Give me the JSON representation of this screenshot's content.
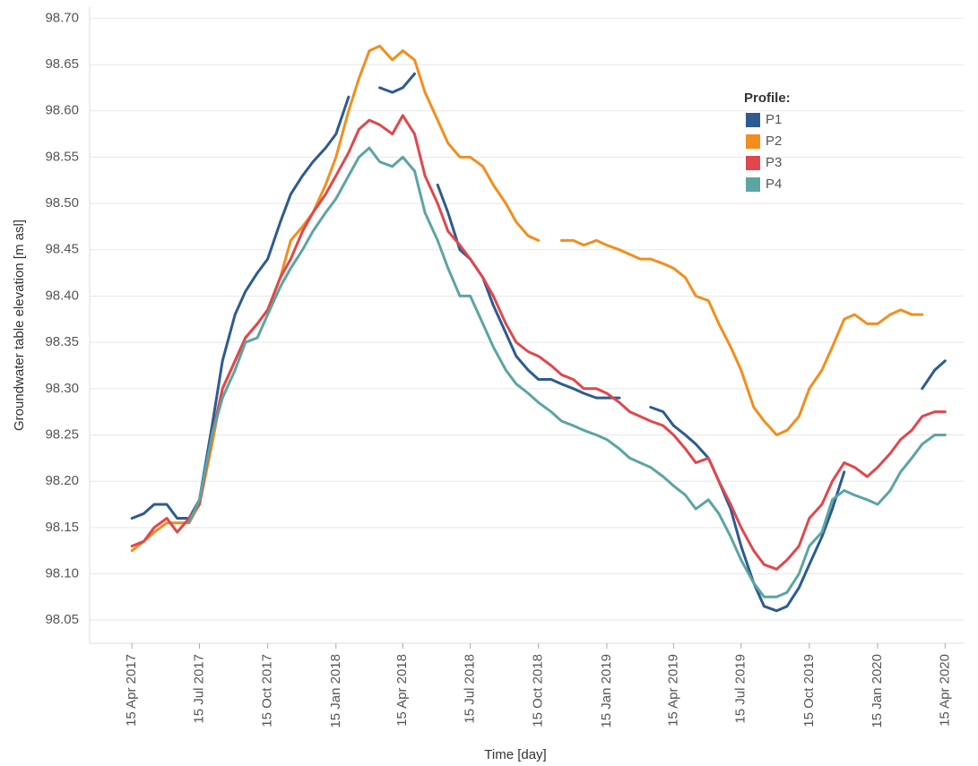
{
  "chart_data": {
    "type": "line",
    "x_label": "Time [day]",
    "y_label": "Groundwater table elevation [m asl]",
    "grid": true,
    "legend": {
      "title": "Profile:",
      "position": "upper right"
    },
    "xlim": [
      "2017-02-17",
      "2020-05-10"
    ],
    "ylim": [
      98.025,
      98.712
    ],
    "yticks": [
      98.05,
      {
        "value": 98.1,
        "label": "98.10"
      },
      98.15,
      {
        "value": 98.2,
        "label": "98.20"
      },
      98.25,
      {
        "value": 98.3,
        "label": "98.30"
      },
      98.35,
      {
        "value": 98.4,
        "label": "98.40"
      },
      98.45,
      {
        "value": 98.5,
        "label": "98.50"
      },
      98.55,
      {
        "value": 98.6,
        "label": "98.60"
      },
      98.65,
      {
        "value": 98.7,
        "label": "98.70"
      }
    ],
    "xticks": [
      {
        "value": "2017-04-15",
        "label": "15 Apr 2017"
      },
      {
        "value": "2017-07-15",
        "label": "15 Jul 2017"
      },
      {
        "value": "2017-10-15",
        "label": "15 Oct 2017"
      },
      {
        "value": "2018-01-15",
        "label": "15 Jan 2018"
      },
      {
        "value": "2018-04-15",
        "label": "15 Apr 2018"
      },
      {
        "value": "2018-07-15",
        "label": "15 Jul 2018"
      },
      {
        "value": "2018-10-15",
        "label": "15 Oct 2018"
      },
      {
        "value": "2019-01-15",
        "label": "15 Jan 2019"
      },
      {
        "value": "2019-04-15",
        "label": "15 Apr 2019"
      },
      {
        "value": "2019-07-15",
        "label": "15 Jul 2019"
      },
      {
        "value": "2019-10-15",
        "label": "15 Oct 2019"
      },
      {
        "value": "2020-01-15",
        "label": "15 Jan 2020"
      },
      {
        "value": "2020-04-15",
        "label": "15 Apr 2020"
      }
    ],
    "x": [
      "2017-04-15",
      "2017-05-01",
      "2017-05-15",
      "2017-06-01",
      "2017-06-15",
      "2017-07-01",
      "2017-07-15",
      "2017-08-01",
      "2017-08-15",
      "2017-09-01",
      "2017-09-15",
      "2017-10-01",
      "2017-10-15",
      "2017-11-01",
      "2017-11-15",
      "2017-12-01",
      "2017-12-15",
      "2018-01-01",
      "2018-01-15",
      "2018-02-01",
      "2018-02-15",
      "2018-03-01",
      "2018-03-15",
      "2018-04-01",
      "2018-04-15",
      "2018-05-01",
      "2018-05-15",
      "2018-06-01",
      "2018-06-15",
      "2018-07-01",
      "2018-07-15",
      "2018-08-01",
      "2018-08-15",
      "2018-09-01",
      "2018-09-15",
      "2018-10-01",
      "2018-10-15",
      "2018-11-01",
      "2018-11-15",
      "2018-12-01",
      "2018-12-15",
      "2019-01-01",
      "2019-01-15",
      "2019-02-01",
      "2019-02-15",
      "2019-03-01",
      "2019-03-15",
      "2019-04-01",
      "2019-04-15",
      "2019-05-01",
      "2019-05-15",
      "2019-06-01",
      "2019-06-15",
      "2019-07-01",
      "2019-07-15",
      "2019-08-01",
      "2019-08-15",
      "2019-09-01",
      "2019-09-15",
      "2019-10-01",
      "2019-10-15",
      "2019-11-01",
      "2019-11-15",
      "2019-12-01",
      "2019-12-15",
      "2020-01-01",
      "2020-01-15",
      "2020-02-01",
      "2020-02-15",
      "2020-03-01",
      "2020-03-15",
      "2020-04-01",
      "2020-04-15"
    ],
    "series": [
      {
        "name": "P1",
        "color": "#2c5b91",
        "values": [
          98.16,
          98.165,
          98.175,
          98.175,
          98.16,
          98.16,
          98.18,
          98.26,
          98.33,
          98.38,
          98.405,
          98.425,
          98.44,
          98.48,
          98.51,
          98.53,
          98.545,
          98.56,
          98.575,
          98.615,
          null,
          null,
          98.625,
          98.62,
          98.625,
          98.64,
          null,
          98.52,
          98.49,
          98.45,
          98.44,
          98.42,
          98.39,
          98.36,
          98.335,
          98.32,
          98.31,
          98.31,
          98.305,
          98.3,
          98.295,
          98.29,
          98.29,
          98.29,
          null,
          null,
          98.28,
          98.275,
          98.26,
          98.25,
          98.24,
          98.225,
          98.2,
          98.17,
          98.13,
          98.09,
          98.065,
          98.06,
          98.065,
          98.085,
          98.11,
          98.14,
          98.17,
          98.21,
          null,
          null,
          null,
          null,
          null,
          null,
          98.3,
          98.32,
          98.33
        ]
      },
      {
        "name": "P2",
        "color": "#f28e1c",
        "values": [
          98.125,
          98.135,
          98.145,
          98.155,
          98.155,
          98.155,
          98.175,
          98.24,
          98.3,
          98.33,
          98.355,
          98.37,
          98.385,
          98.42,
          98.46,
          98.475,
          98.49,
          98.52,
          98.55,
          98.6,
          98.635,
          98.665,
          98.67,
          98.655,
          98.665,
          98.655,
          98.62,
          98.59,
          98.565,
          98.55,
          98.55,
          98.54,
          98.52,
          98.5,
          98.48,
          98.465,
          98.46,
          null,
          98.46,
          98.46,
          98.455,
          98.46,
          98.455,
          98.45,
          98.445,
          98.44,
          98.44,
          98.435,
          98.43,
          98.42,
          98.4,
          98.395,
          98.37,
          98.345,
          98.32,
          98.28,
          98.265,
          98.25,
          98.255,
          98.27,
          98.3,
          98.32,
          98.345,
          98.375,
          98.38,
          98.37,
          98.37,
          98.38,
          98.385,
          98.38,
          98.38,
          null,
          null
        ]
      },
      {
        "name": "P3",
        "color": "#e0474c",
        "values": [
          98.13,
          98.135,
          98.15,
          98.16,
          98.145,
          98.16,
          98.175,
          98.25,
          98.3,
          98.33,
          98.355,
          98.37,
          98.385,
          98.42,
          98.44,
          98.47,
          98.49,
          98.51,
          98.53,
          98.555,
          98.58,
          98.59,
          98.585,
          98.575,
          98.595,
          98.575,
          98.53,
          98.5,
          98.47,
          98.455,
          98.44,
          98.42,
          98.4,
          98.37,
          98.35,
          98.34,
          98.335,
          98.325,
          98.315,
          98.31,
          98.3,
          98.3,
          98.295,
          98.285,
          98.275,
          98.27,
          98.265,
          98.26,
          98.25,
          98.235,
          98.22,
          98.225,
          98.2,
          98.175,
          98.15,
          98.125,
          98.11,
          98.105,
          98.115,
          98.13,
          98.16,
          98.175,
          98.2,
          98.22,
          98.215,
          98.205,
          98.215,
          98.23,
          98.245,
          98.255,
          98.27,
          98.275,
          98.275
        ]
      },
      {
        "name": "P4",
        "color": "#5ba5a2",
        "values": [
          null,
          null,
          null,
          null,
          null,
          98.155,
          98.18,
          98.25,
          98.29,
          98.32,
          98.35,
          98.355,
          98.38,
          98.41,
          98.43,
          98.45,
          98.47,
          98.49,
          98.505,
          98.53,
          98.55,
          98.56,
          98.545,
          98.54,
          98.55,
          98.535,
          98.49,
          98.46,
          98.43,
          98.4,
          98.4,
          98.37,
          98.345,
          98.32,
          98.305,
          98.295,
          98.285,
          98.275,
          98.265,
          98.26,
          98.255,
          98.25,
          98.245,
          98.235,
          98.225,
          98.22,
          98.215,
          98.205,
          98.195,
          98.185,
          98.17,
          98.18,
          98.165,
          98.14,
          98.115,
          98.09,
          98.075,
          98.075,
          98.08,
          98.1,
          98.13,
          98.145,
          98.18,
          98.19,
          98.185,
          98.18,
          98.175,
          98.19,
          98.21,
          98.225,
          98.24,
          98.25,
          98.25
        ]
      }
    ]
  }
}
